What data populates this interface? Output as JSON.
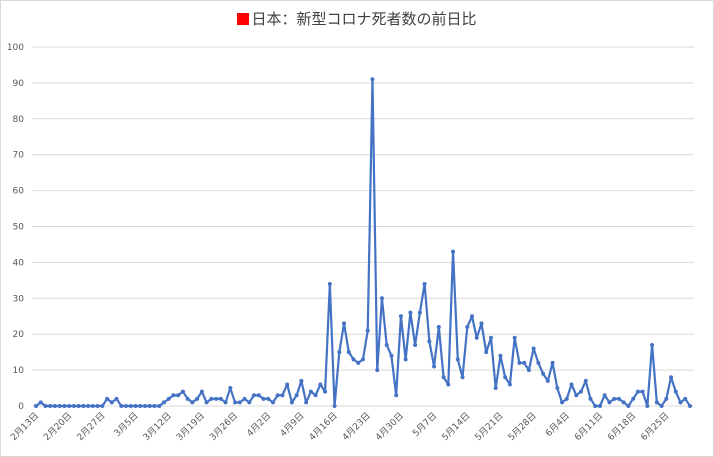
{
  "colors": {
    "series": "#4472c4",
    "marker": "#ff0000",
    "grid": "#d9d9d9",
    "text": "#595959"
  },
  "chart_data": {
    "type": "line",
    "title": "日本：新型コロナ死者数の前日比",
    "title_marker": "red-square",
    "xlabel": "",
    "ylabel": "",
    "ylim": [
      0,
      100
    ],
    "yticks": [
      0,
      10,
      20,
      30,
      40,
      50,
      60,
      70,
      80,
      90,
      100
    ],
    "grid": true,
    "legend": "none",
    "x_tick_labels": [
      "2月13日",
      "2月20日",
      "2月27日",
      "3月5日",
      "3月12日",
      "3月19日",
      "3月26日",
      "4月2日",
      "4月9日",
      "4月16日",
      "4月23日",
      "4月30日",
      "5月7日",
      "5月14日",
      "5月21日",
      "5月28日",
      "6月4日",
      "6月11日",
      "6月18日",
      "6月25日"
    ],
    "x_start": "2020-02-13",
    "x_end": "2020-06-28",
    "series": [
      {
        "values": [
          0,
          1,
          0,
          0,
          0,
          0,
          0,
          0,
          0,
          0,
          0,
          0,
          0,
          0,
          0,
          2,
          1,
          2,
          0,
          0,
          0,
          0,
          0,
          0,
          0,
          0,
          0,
          1,
          2,
          3,
          3,
          4,
          2,
          1,
          2,
          4,
          1,
          2,
          2,
          2,
          1,
          5,
          1,
          1,
          2,
          1,
          3,
          3,
          2,
          2,
          1,
          3,
          3,
          6,
          1,
          3,
          7,
          1,
          4,
          3,
          6,
          4,
          34,
          0,
          15,
          23,
          15,
          13,
          12,
          13,
          21,
          91,
          10,
          30,
          17,
          14,
          3,
          25,
          13,
          26,
          17,
          26,
          34,
          18,
          11,
          22,
          8,
          6,
          43,
          13,
          8,
          22,
          25,
          19,
          23,
          15,
          19,
          5,
          14,
          8,
          6,
          19,
          12,
          12,
          10,
          16,
          12,
          9,
          7,
          12,
          5,
          1,
          2,
          6,
          3,
          4,
          7,
          2,
          0,
          0,
          3,
          1,
          2,
          2,
          1,
          0,
          2,
          4,
          4,
          0,
          17,
          1,
          0,
          2,
          8,
          4,
          1,
          2,
          0
        ]
      }
    ]
  }
}
